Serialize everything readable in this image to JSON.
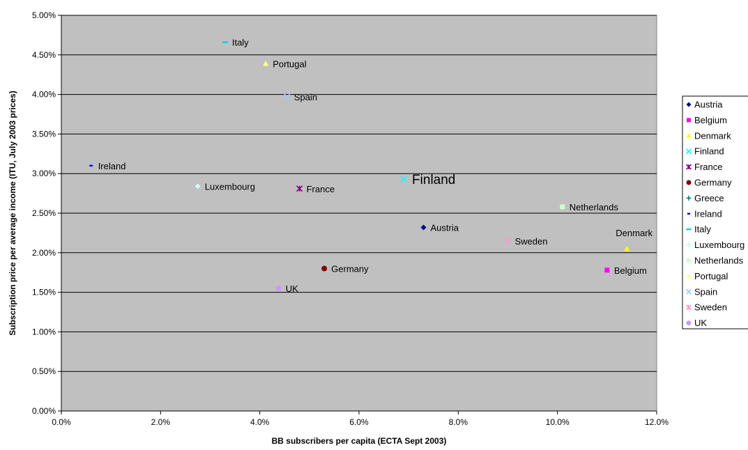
{
  "chart_data": {
    "type": "scatter",
    "title": "",
    "xlabel": "BB subscribers per capita (ECTA Sept 2003)",
    "ylabel": "Subscription price per average income (ITU, July 2003 prices)",
    "xlim": [
      0,
      12
    ],
    "ylim": [
      0,
      5
    ],
    "x_ticks": [
      "0.0%",
      "2.0%",
      "4.0%",
      "6.0%",
      "8.0%",
      "10.0%",
      "12.0%"
    ],
    "y_ticks": [
      "0.00%",
      "0.50%",
      "1.00%",
      "1.50%",
      "2.00%",
      "2.50%",
      "3.00%",
      "3.50%",
      "4.00%",
      "4.50%",
      "5.00%"
    ],
    "grid": "horizontal",
    "plot_background": "#c0c0c0",
    "legend_position": "right",
    "series": [
      {
        "name": "Austria",
        "x": 7.3,
        "y": 2.32,
        "label": "Austria",
        "color": "#000080",
        "marker": "diamond"
      },
      {
        "name": "Belgium",
        "x": 11.0,
        "y": 1.78,
        "label": "Belgium",
        "color": "#ff00ff",
        "marker": "square"
      },
      {
        "name": "Denmark",
        "x": 11.4,
        "y": 2.05,
        "label": "Denmark",
        "color": "#ffff00",
        "marker": "triangle"
      },
      {
        "name": "Finland",
        "x": 6.9,
        "y": 2.93,
        "label": "Finland",
        "color": "#00ffff",
        "marker": "x"
      },
      {
        "name": "France",
        "x": 4.8,
        "y": 2.81,
        "label": "France",
        "color": "#800080",
        "marker": "star"
      },
      {
        "name": "Germany",
        "x": 5.3,
        "y": 1.8,
        "label": "Germany",
        "color": "#800000",
        "marker": "circle"
      },
      {
        "name": "Greece",
        "x": null,
        "y": null,
        "label": "",
        "color": "#008080",
        "marker": "plus"
      },
      {
        "name": "Ireland",
        "x": 0.6,
        "y": 3.1,
        "label": "Ireland",
        "color": "#0000ff",
        "marker": "dash"
      },
      {
        "name": "Italy",
        "x": 3.3,
        "y": 4.66,
        "label": "Italy",
        "color": "#00ccff",
        "marker": "longdash"
      },
      {
        "name": "Luxembourg",
        "x": 2.75,
        "y": 2.84,
        "label": "Luxembourg",
        "color": "#ccffff",
        "marker": "diamond"
      },
      {
        "name": "Netherlands",
        "x": 10.1,
        "y": 2.58,
        "label": "Netherlands",
        "color": "#ccffcc",
        "marker": "square"
      },
      {
        "name": "Portugal",
        "x": 4.12,
        "y": 4.39,
        "label": "Portugal",
        "color": "#ffff99",
        "marker": "triangle"
      },
      {
        "name": "Spain",
        "x": 4.55,
        "y": 3.97,
        "label": "Spain",
        "color": "#99ccff",
        "marker": "x"
      },
      {
        "name": "Sweden",
        "x": 9.0,
        "y": 2.15,
        "label": "Sweden",
        "color": "#ff99cc",
        "marker": "star"
      },
      {
        "name": "UK",
        "x": 4.38,
        "y": 1.55,
        "label": "UK",
        "color": "#cc99ff",
        "marker": "circle"
      }
    ]
  }
}
